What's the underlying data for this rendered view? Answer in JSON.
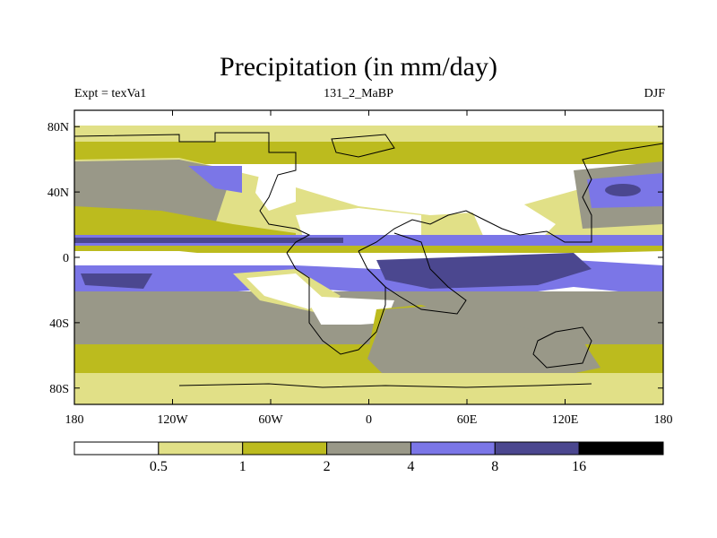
{
  "title": "Precipitation (in mm/day)",
  "subtitle_left": "Expt = texVa1",
  "subtitle_center": "131_2_MaBP",
  "subtitle_right": "DJF",
  "map": {
    "lon_range": [
      -180,
      180
    ],
    "lat_range": [
      -90,
      90
    ],
    "lat_ticks": [
      {
        "value": 80,
        "label": "80N"
      },
      {
        "value": 40,
        "label": "40N"
      },
      {
        "value": 0,
        "label": "0"
      },
      {
        "value": -40,
        "label": "40S"
      },
      {
        "value": -80,
        "label": "80S"
      }
    ],
    "lon_ticks": [
      {
        "value": -180,
        "label": "180"
      },
      {
        "value": -120,
        "label": "120W"
      },
      {
        "value": -60,
        "label": "60W"
      },
      {
        "value": 0,
        "label": "0"
      },
      {
        "value": 60,
        "label": "60E"
      },
      {
        "value": 120,
        "label": "120E"
      },
      {
        "value": 180,
        "label": "180"
      }
    ]
  },
  "colorbar": {
    "boundaries": [
      "0.5",
      "1",
      "2",
      "4",
      "8",
      "16"
    ],
    "colors": [
      "#ffffff",
      "#e1e087",
      "#bcbb1e",
      "#999888",
      "#7b76e7",
      "#4b478f",
      "#000000"
    ]
  }
}
